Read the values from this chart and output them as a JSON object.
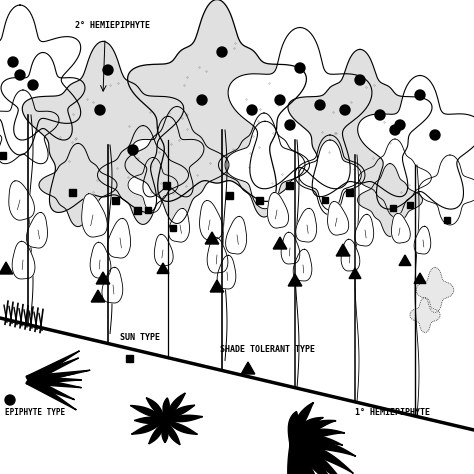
{
  "bg_color": "#ffffff",
  "line_color": "#000000",
  "label_2nd_hemi": "2° HEMIEPIPHYTE",
  "label_1st_hemi": "1° HEMIEPIPHYTE",
  "label_sun": "SUN TYPE",
  "label_shade": "SHADE TOLERANT TYPE",
  "label_epiphyte": "EPIPHYTE TYPE",
  "figsize": [
    4.74,
    4.74
  ],
  "dpi": 100
}
